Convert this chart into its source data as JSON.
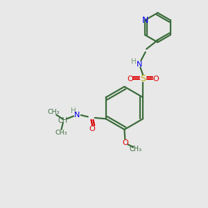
{
  "bg_color": "#e8e8e8",
  "bond_color": "#3a6b3a",
  "N_color": "#0000ee",
  "O_color": "#dd0000",
  "S_color": "#bbaa00",
  "H_color": "#7a9a7a",
  "line_width": 1.6,
  "figsize": [
    3.0,
    3.0
  ],
  "dpi": 100,
  "xlim": [
    0,
    10
  ],
  "ylim": [
    0,
    10
  ]
}
